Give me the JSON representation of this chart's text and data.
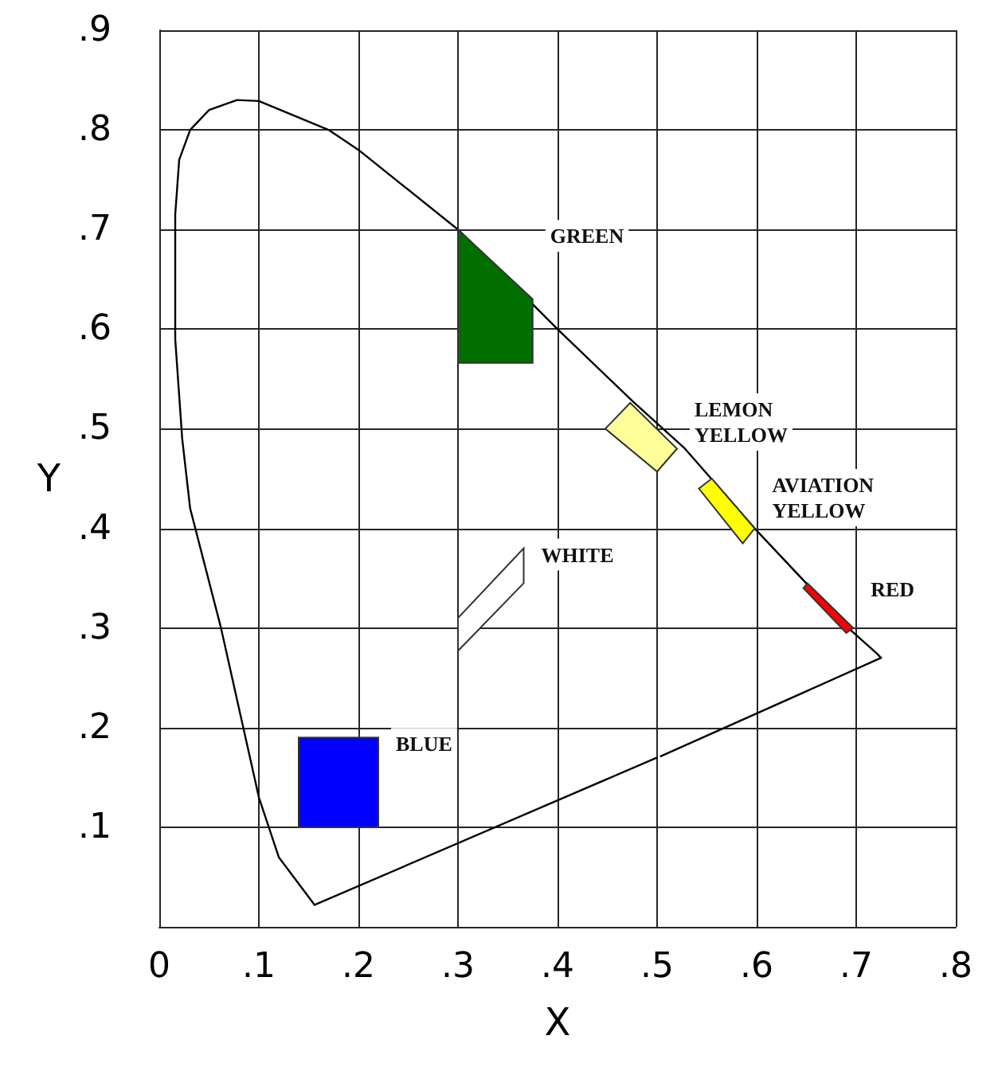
{
  "chart_data": {
    "type": "line",
    "xlabel": "X",
    "ylabel": "Y",
    "xlim": [
      0,
      0.8
    ],
    "ylim": [
      0,
      0.9
    ],
    "xticks": [
      0,
      {
        "value": 0.1,
        "label": ".1"
      },
      {
        "value": 0.2,
        "label": ".2"
      },
      {
        "value": 0.3,
        "label": ".3"
      },
      {
        "value": 0.4,
        "label": ".4"
      },
      {
        "value": 0.5,
        "label": ".5"
      },
      {
        "value": 0.6,
        "label": ".6"
      },
      {
        "value": 0.7,
        "label": ".7"
      },
      {
        "value": 0.8,
        "label": ".8"
      }
    ],
    "yticks": [
      {
        "value": 0,
        "label": null
      },
      {
        "value": 0.1,
        "label": ".1"
      },
      {
        "value": 0.2,
        "label": ".2"
      },
      {
        "value": 0.3,
        "label": ".3"
      },
      {
        "value": 0.4,
        "label": ".4"
      },
      {
        "value": 0.5,
        "label": ".5"
      },
      {
        "value": 0.6,
        "label": ".6"
      },
      {
        "value": 0.7,
        "label": ".7"
      },
      {
        "value": 0.8,
        "label": ".8"
      },
      {
        "value": 0.9,
        "label": ".9"
      }
    ],
    "grid": true,
    "marker": "none",
    "series": [
      {
        "color": "#000000",
        "x": [
          0.5,
          0.156,
          0.12,
          0.1,
          0.062,
          0.031,
          0.023,
          0.016,
          0.016,
          0.02,
          0.031,
          0.05,
          0.078,
          0.1,
          0.17,
          0.2,
          0.3,
          0.4,
          0.475,
          0.528,
          0.598,
          0.692,
          0.72,
          0.725,
          0.503
        ],
        "values": [
          0.17,
          0.022,
          0.07,
          0.13,
          0.3,
          0.42,
          0.49,
          0.59,
          0.715,
          0.77,
          0.8,
          0.82,
          0.83,
          0.829,
          0.8,
          0.78,
          0.7,
          0.6,
          0.528,
          0.48,
          0.4,
          0.3,
          0.275,
          0.27,
          0.171
        ]
      },
      {
        "type": "area",
        "name": "GREEN",
        "color": "#006f00",
        "x": [
          0.3,
          0.375,
          0.375,
          0.3
        ],
        "values": [
          0.7,
          0.63,
          0.566,
          0.566
        ]
      },
      {
        "type": "area",
        "name": "LEMON YELLOW",
        "color": "#ffff99",
        "x": [
          0.448,
          0.473,
          0.52,
          0.5
        ],
        "values": [
          0.5,
          0.526,
          0.48,
          0.457
        ]
      },
      {
        "type": "area",
        "name": "AVIATION YELLOW",
        "color": "#ffff00",
        "x": [
          0.542,
          0.555,
          0.598,
          0.586
        ],
        "values": [
          0.44,
          0.45,
          0.4,
          0.385
        ]
      },
      {
        "type": "area",
        "name": "RED",
        "color": "#ff0000",
        "x": [
          0.647,
          0.651,
          0.697,
          0.69
        ],
        "values": [
          0.34,
          0.345,
          0.3,
          0.295
        ]
      },
      {
        "type": "area",
        "name": "WHITE",
        "color": "#ffffff",
        "x": [
          0.3,
          0.3,
          0.366,
          0.366
        ],
        "values": [
          0.277,
          0.31,
          0.38,
          0.345
        ]
      },
      {
        "type": "area",
        "name": "BLUE",
        "color": "#0000ff",
        "x": [
          0.14,
          0.22,
          0.22,
          0.14
        ],
        "values": [
          0.1,
          0.1,
          0.19,
          0.19
        ]
      }
    ]
  }
}
